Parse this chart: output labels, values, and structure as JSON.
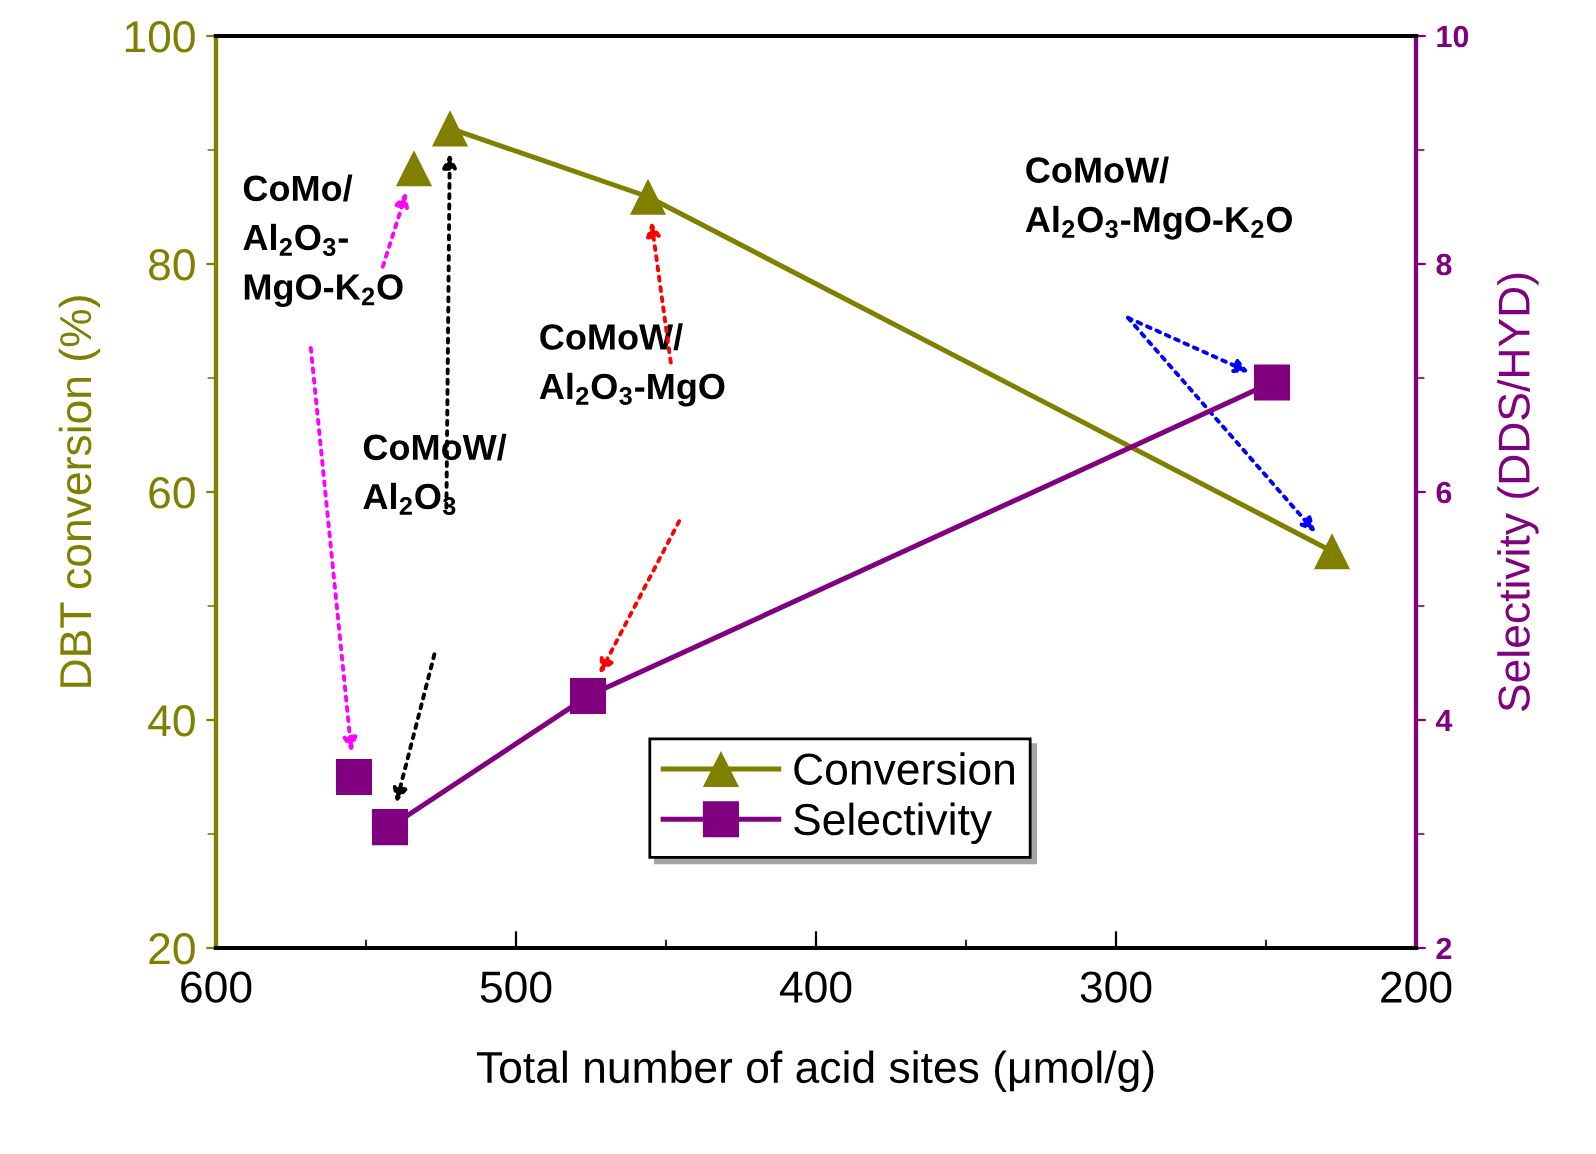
{
  "chart_data": {
    "type": "line",
    "xlabel": "Total number of acid sites (μmol/g)",
    "ylabel": "DBT conversion (%)",
    "y2label": "Selectivity (DDS/HYD)",
    "series": [
      {
        "type": "scatter",
        "color": "#808000",
        "marker": "triangle",
        "x": [
          534
        ],
        "values": [
          88.4
        ]
      },
      {
        "name": "Conversion",
        "color": "#808000",
        "marker": "triangle",
        "x": [
          522,
          456,
          228
        ],
        "values": [
          91.9,
          85.9,
          54.8
        ]
      },
      {
        "type": "scatter",
        "color": "#800080",
        "marker": "square",
        "axis": "y2",
        "x": [
          554
        ],
        "values": [
          3.5
        ]
      },
      {
        "name": "Selectivity",
        "color": "#800080",
        "marker": "square",
        "axis": "y2",
        "x": [
          542,
          476,
          248
        ],
        "values": [
          3.06,
          4.21,
          6.96
        ]
      }
    ],
    "xlim": [
      600,
      200
    ],
    "xticks": [
      600,
      500,
      400,
      300,
      200
    ],
    "ylim": [
      20,
      100
    ],
    "yticks": [
      20,
      40,
      60,
      80,
      100
    ],
    "y2lim": [
      2,
      10
    ],
    "y2ticks": [
      2,
      4,
      6,
      8,
      10
    ],
    "annotations": [
      "CoMo/\nAl$_{2}$O$_{3}$-\nMgO-K$_{2}$O",
      "CoMoW/\nAl$_{2}$O$_{3}$",
      "CoMoW/\nAl$_{2}$O$_{3}$-MgO",
      "CoMoW/\nAl$_{2}$O$_{3}$-MgO-K$_{2}$O"
    ],
    "legend": "bottom",
    "grid": false
  }
}
